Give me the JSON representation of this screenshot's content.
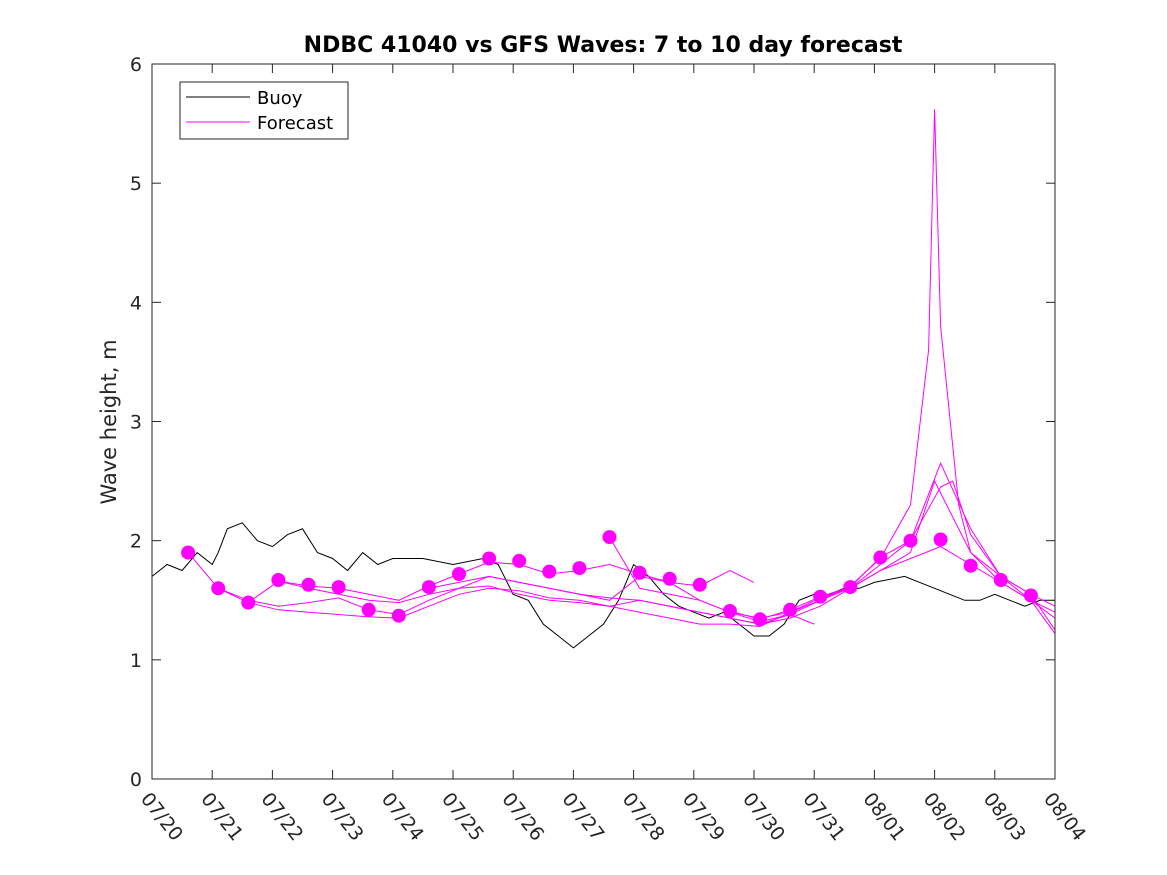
{
  "chart_data": {
    "type": "line",
    "title": "NDBC 41040 vs GFS Waves: 7 to 10 day forecast",
    "xlabel": "",
    "ylabel": "Wave height, m",
    "xlim": [
      "07/20",
      "08/04"
    ],
    "ylim": [
      0,
      6
    ],
    "x_ticks": [
      "07/20",
      "07/21",
      "07/22",
      "07/23",
      "07/24",
      "07/25",
      "07/26",
      "07/27",
      "07/28",
      "07/29",
      "07/30",
      "07/31",
      "08/01",
      "08/02",
      "08/03",
      "08/04"
    ],
    "y_ticks": [
      "0",
      "1",
      "2",
      "3",
      "4",
      "5",
      "6"
    ],
    "grid": false,
    "legend": {
      "position": "top-left",
      "entries": [
        "Buoy",
        "Forecast"
      ]
    },
    "colors": {
      "buoy": "#000000",
      "forecast": "#ff00ff"
    },
    "series": [
      {
        "name": "Buoy",
        "x_days": [
          0,
          0.25,
          0.5,
          0.75,
          1.0,
          1.1,
          1.25,
          1.5,
          1.75,
          2.0,
          2.25,
          2.5,
          2.75,
          3.0,
          3.25,
          3.5,
          3.75,
          4.0,
          4.5,
          5.0,
          5.5,
          5.75,
          6.0,
          6.25,
          6.5,
          6.75,
          7.0,
          7.25,
          7.5,
          7.75,
          8.0,
          8.25,
          8.5,
          8.75,
          9.0,
          9.25,
          9.5,
          9.75,
          10.0,
          10.25,
          10.5,
          10.75,
          11.0,
          11.25,
          11.5,
          11.75,
          12.0,
          12.5,
          13.0,
          13.25,
          13.5,
          13.75,
          14.0,
          14.25,
          14.5,
          14.75,
          15.0
        ],
        "y": [
          1.7,
          1.8,
          1.75,
          1.9,
          1.8,
          1.9,
          2.1,
          2.15,
          2.0,
          1.95,
          2.05,
          2.1,
          1.9,
          1.85,
          1.75,
          1.9,
          1.8,
          1.85,
          1.85,
          1.8,
          1.85,
          1.8,
          1.55,
          1.5,
          1.3,
          1.2,
          1.1,
          1.2,
          1.3,
          1.5,
          1.8,
          1.7,
          1.55,
          1.45,
          1.4,
          1.35,
          1.4,
          1.3,
          1.2,
          1.2,
          1.3,
          1.5,
          1.55,
          1.55,
          1.6,
          1.6,
          1.65,
          1.7,
          1.6,
          1.55,
          1.5,
          1.5,
          1.55,
          1.5,
          1.45,
          1.5,
          1.5
        ]
      },
      {
        "name": "Forecast",
        "lines": [
          {
            "x_days": [
              0.6,
              1.1,
              1.6,
              2.1,
              2.6,
              3.1,
              3.6,
              4.1,
              4.6,
              5.1,
              5.6,
              6.1,
              6.6,
              7.1,
              7.6,
              8.1,
              8.6,
              9.1,
              9.6,
              10.0
            ],
            "y": [
              1.9,
              1.6,
              1.48,
              1.66,
              1.62,
              1.6,
              1.55,
              1.5,
              1.62,
              1.72,
              1.82,
              1.8,
              1.72,
              1.75,
              1.8,
              1.72,
              1.65,
              1.62,
              1.75,
              1.65
            ]
          },
          {
            "x_days": [
              1.1,
              1.6,
              2.1,
              2.6,
              3.1,
              3.6,
              4.1,
              4.6,
              5.1,
              5.6,
              6.1,
              6.6,
              7.1,
              7.6,
              8.1,
              8.6,
              9.1,
              9.6,
              10.1,
              10.6,
              11.0
            ],
            "y": [
              1.6,
              1.5,
              1.45,
              1.48,
              1.52,
              1.42,
              1.38,
              1.5,
              1.6,
              1.7,
              1.65,
              1.6,
              1.55,
              1.5,
              1.7,
              1.65,
              1.5,
              1.4,
              1.32,
              1.38,
              1.3
            ]
          },
          {
            "x_days": [
              1.6,
              2.1,
              2.6,
              3.1,
              3.6,
              4.1,
              4.6,
              5.1,
              5.6,
              6.1,
              6.6,
              7.1,
              7.6,
              8.1,
              8.6,
              9.1,
              9.6,
              10.1,
              10.6,
              11.1,
              11.6,
              12.1,
              12.6,
              13.1,
              13.6,
              14.1,
              14.6,
              15.0
            ],
            "y": [
              1.48,
              1.42,
              1.4,
              1.38,
              1.36,
              1.35,
              1.45,
              1.55,
              1.6,
              1.58,
              1.52,
              1.5,
              1.45,
              1.4,
              1.35,
              1.3,
              1.3,
              1.28,
              1.4,
              1.5,
              1.6,
              1.75,
              1.85,
              1.95,
              1.8,
              1.65,
              1.5,
              1.4
            ]
          },
          {
            "x_days": [
              2.1,
              2.6,
              3.1,
              3.6,
              4.1,
              4.6,
              5.1,
              5.6,
              6.1,
              6.6,
              7.1,
              7.6,
              8.1,
              8.6,
              9.1,
              9.6,
              10.1,
              10.6,
              11.1,
              11.6,
              12.1,
              12.6,
              13.0,
              13.6,
              14.1,
              14.6,
              15.0
            ],
            "y": [
              1.66,
              1.6,
              1.55,
              1.5,
              1.48,
              1.55,
              1.6,
              1.62,
              1.55,
              1.5,
              1.48,
              1.45,
              1.5,
              1.45,
              1.4,
              1.35,
              1.3,
              1.35,
              1.45,
              1.6,
              1.75,
              1.9,
              2.5,
              1.9,
              1.65,
              1.5,
              1.35
            ]
          },
          {
            "x_days": [
              4.6,
              5.1,
              5.6,
              6.1,
              6.6,
              7.1,
              7.6,
              8.1,
              8.6,
              9.1,
              9.6,
              10.1,
              10.6,
              11.1,
              11.6,
              12.1,
              12.6,
              12.9,
              13.0,
              13.1,
              13.4,
              13.6,
              14.1,
              14.6,
              15.0
            ],
            "y": [
              1.6,
              1.65,
              1.7,
              1.65,
              1.6,
              1.55,
              1.52,
              1.5,
              1.45,
              1.4,
              1.35,
              1.3,
              1.38,
              1.5,
              1.62,
              1.85,
              2.3,
              3.6,
              5.62,
              3.8,
              2.3,
              1.9,
              1.7,
              1.55,
              1.45
            ]
          },
          {
            "x_days": [
              7.6,
              8.1,
              8.6,
              9.1,
              9.6,
              10.1,
              10.6,
              11.1,
              11.6,
              12.1,
              12.6,
              13.1,
              13.6,
              14.1,
              14.6,
              15.0
            ],
            "y": [
              2.03,
              1.6,
              1.55,
              1.5,
              1.4,
              1.35,
              1.4,
              1.52,
              1.6,
              1.8,
              2.0,
              2.65,
              2.1,
              1.7,
              1.5,
              1.22
            ]
          },
          {
            "x_days": [
              9.6,
              10.1,
              10.6,
              11.1,
              11.6,
              12.1,
              12.6,
              13.1,
              13.3,
              13.6,
              14.1,
              14.6,
              15.0
            ],
            "y": [
              1.41,
              1.34,
              1.42,
              1.53,
              1.61,
              1.86,
              2.0,
              2.45,
              2.5,
              2.05,
              1.7,
              1.55,
              1.25
            ]
          }
        ],
        "markers": {
          "x_days": [
            0.6,
            1.1,
            1.6,
            2.1,
            2.6,
            3.1,
            3.6,
            4.1,
            4.6,
            5.1,
            5.6,
            6.1,
            6.6,
            7.1,
            7.6,
            8.1,
            8.6,
            9.1,
            9.6,
            10.1,
            10.6,
            11.1,
            11.6,
            12.1,
            12.6,
            13.1,
            13.6,
            14.1,
            14.6
          ],
          "y": [
            1.9,
            1.6,
            1.48,
            1.67,
            1.63,
            1.61,
            1.42,
            1.37,
            1.61,
            1.72,
            1.85,
            1.83,
            1.74,
            1.77,
            2.03,
            1.73,
            1.68,
            1.63,
            1.41,
            1.34,
            1.42,
            1.53,
            1.61,
            1.86,
            2.0,
            2.01,
            1.79,
            1.67,
            1.54
          ]
        }
      }
    ]
  }
}
